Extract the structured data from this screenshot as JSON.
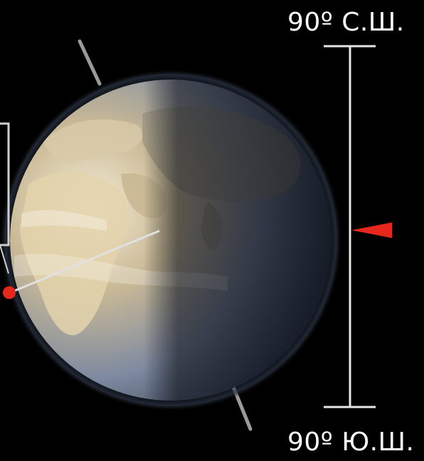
{
  "labels": {
    "north": "90º С.Ш.",
    "south": "90º Ю.Ш."
  },
  "colors": {
    "background": "#000000",
    "scale_line": "#e6e6e6",
    "marker": "#e8271c",
    "sunlight_ray": "#e0e0e0",
    "night_shade": "#0a0f1a"
  },
  "latitude_indicator": {
    "latitude_fraction_from_north": 0.51
  }
}
